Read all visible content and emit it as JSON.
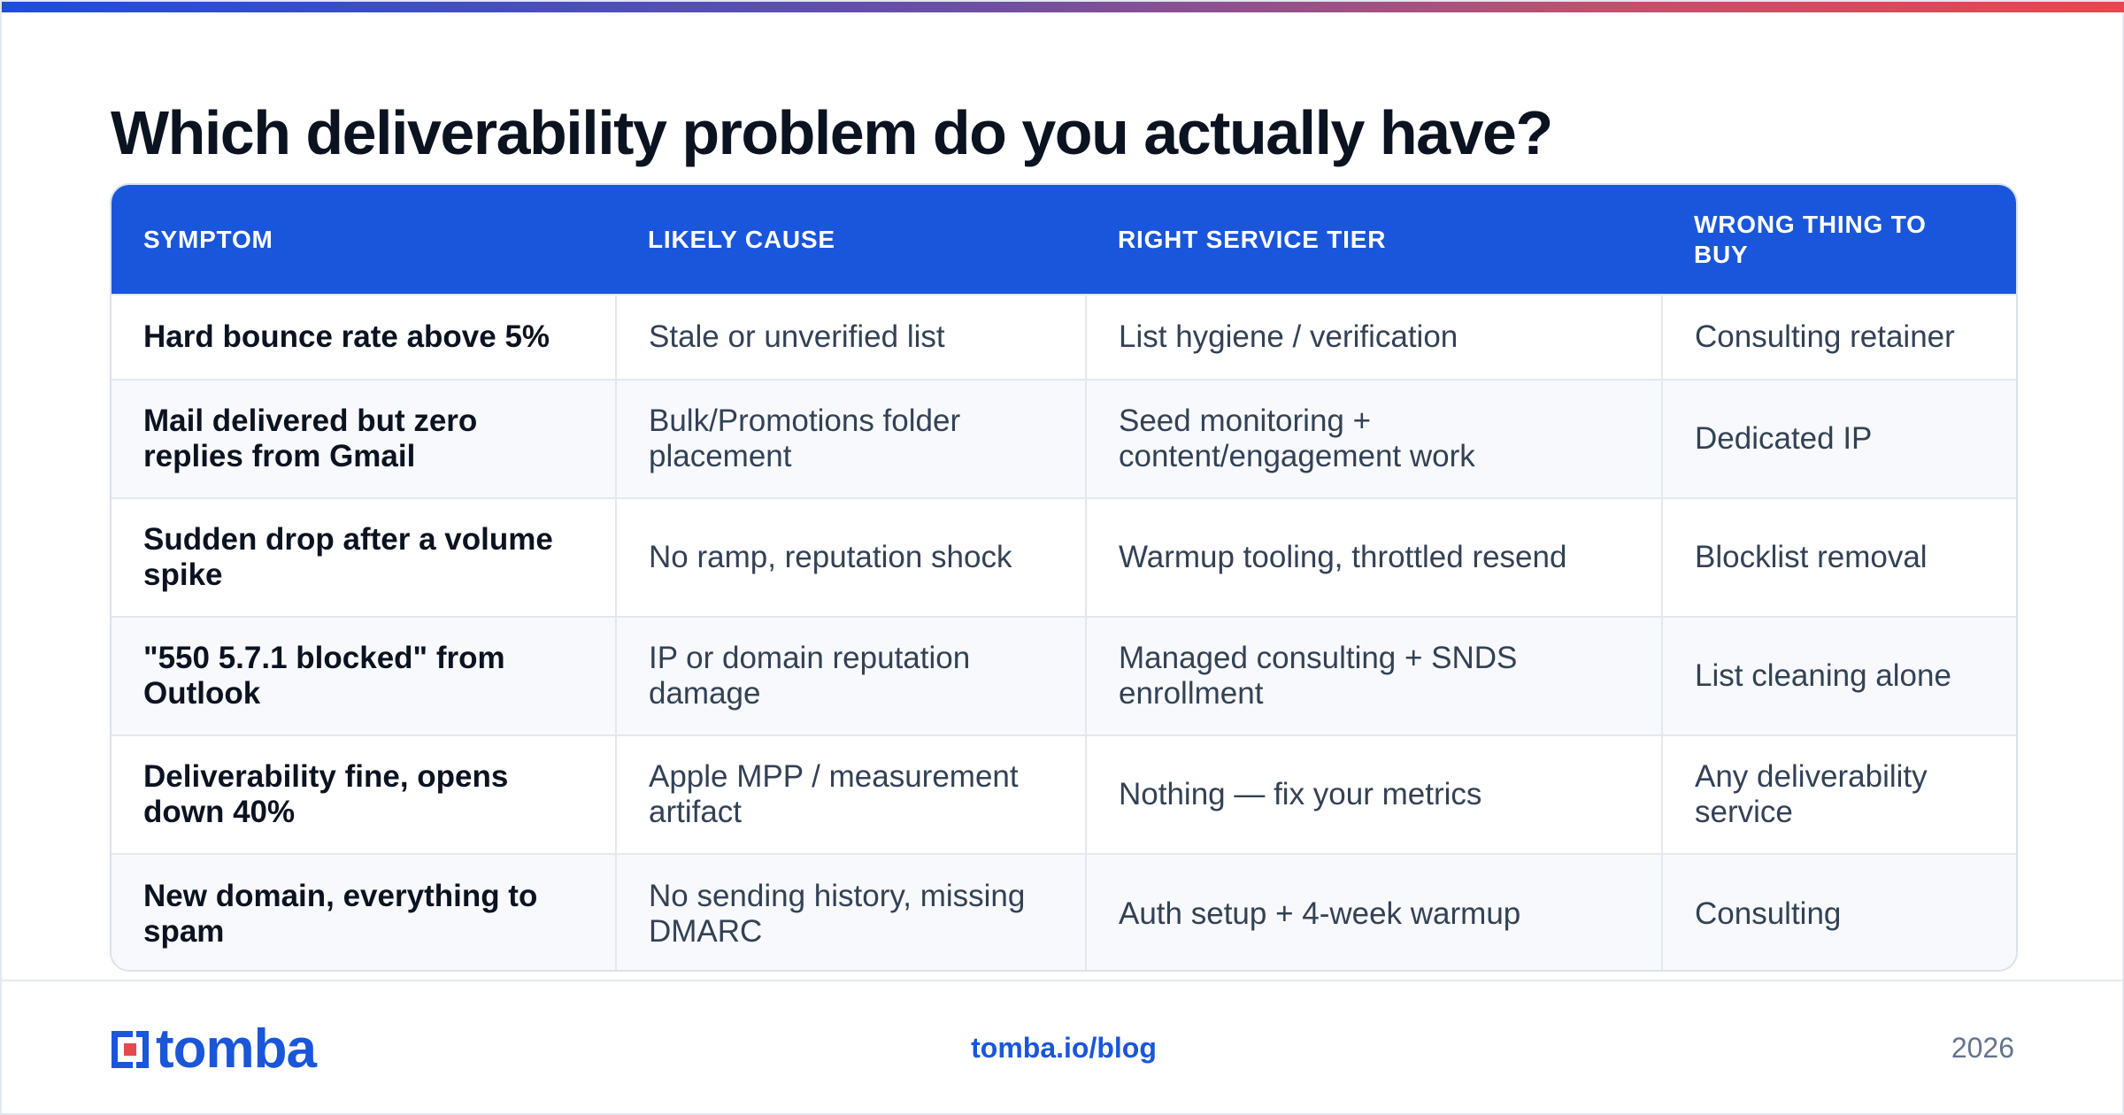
{
  "title": "Which deliverability problem do you actually have?",
  "table": {
    "headers": [
      "SYMPTOM",
      "LIKELY CAUSE",
      "RIGHT SERVICE TIER",
      "WRONG THING TO BUY"
    ],
    "rows": [
      [
        "Hard bounce rate above 5%",
        "Stale or unverified list",
        "List hygiene / verification",
        "Consulting retainer"
      ],
      [
        "Mail delivered but zero replies from Gmail",
        "Bulk/Promotions folder placement",
        "Seed monitoring + content/engagement work",
        "Dedicated IP"
      ],
      [
        "Sudden drop after a volume spike",
        "No ramp, reputation shock",
        "Warmup tooling, throttled resend",
        "Blocklist removal"
      ],
      [
        "\"550 5.7.1 blocked\" from Outlook",
        "IP or domain reputation damage",
        "Managed consulting + SNDS enrollment",
        "List cleaning alone"
      ],
      [
        "Deliverability fine, opens down 40%",
        "Apple MPP / measurement artifact",
        "Nothing — fix your metrics",
        "Any deliverability service"
      ],
      [
        "New domain, everything to spam",
        "No sending history, missing DMARC",
        "Auth setup + 4-week warmup",
        "Consulting"
      ]
    ]
  },
  "footer": {
    "logo_text": "tomba",
    "logo_icon": "tomba-logo-icon",
    "link": "tomba.io/blog",
    "year": "2026"
  },
  "colors": {
    "accent": "#1a56db",
    "header_bg": "#1a56db",
    "logo_red": "#e5484d"
  }
}
